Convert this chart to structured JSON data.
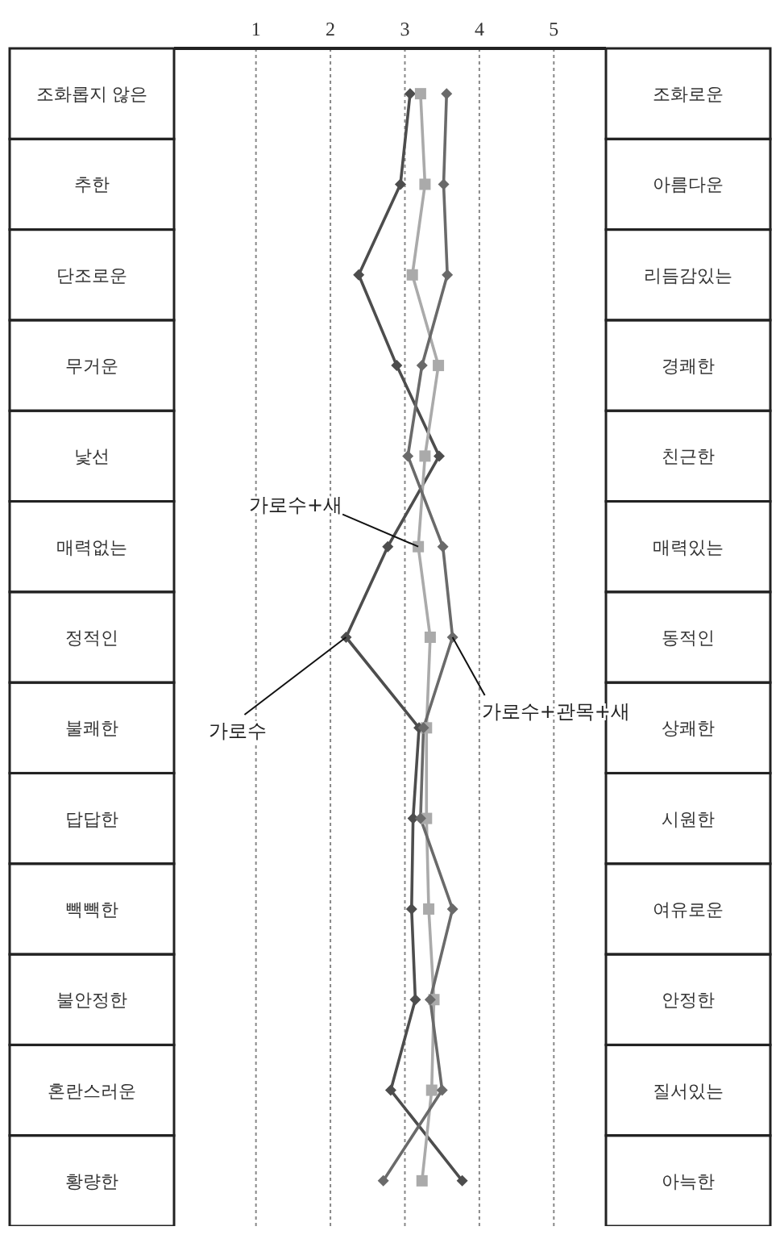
{
  "chart_data": {
    "type": "line",
    "orientation": "horizontal",
    "categories": [
      "조화롭지 않은",
      "추한",
      "단조로운",
      "무거운",
      "낯선",
      "매력없는",
      "정적인",
      "불쾌한",
      "답답한",
      "빽빽한",
      "불안정한",
      "혼란스러운",
      "황량한"
    ],
    "y2_categories": [
      "조화로운",
      "아름다운",
      "리듬감있는",
      "경쾌한",
      "친근한",
      "매력있는",
      "동적인",
      "상쾌한",
      "시원한",
      "여유로운",
      "안정한",
      "질서있는",
      "아늑한"
    ],
    "series": [
      {
        "color": "#4d4d4d",
        "marker": "diamond",
        "values": [
          3.07,
          2.94,
          2.38,
          2.89,
          3.46,
          2.77,
          2.21,
          3.19,
          3.11,
          3.09,
          3.14,
          2.81,
          3.77
        ]
      },
      {
        "color": "#aaaaaa",
        "marker": "square",
        "values": [
          3.21,
          3.27,
          3.1,
          3.45,
          3.27,
          3.18,
          3.34,
          3.29,
          3.29,
          3.32,
          3.39,
          3.36,
          3.23
        ]
      },
      {
        "color": "#6a6a6a",
        "marker": "diamond",
        "values": [
          3.56,
          3.52,
          3.57,
          3.23,
          3.04,
          3.51,
          3.64,
          3.25,
          3.21,
          3.64,
          3.34,
          3.5,
          2.71
        ]
      }
    ],
    "xlim": [
      -0.1,
      5.7
    ],
    "xticks": [
      1,
      2,
      3,
      4,
      5
    ],
    "grid": "x",
    "line_style": "solid",
    "annotations": [
      {
        "text": "가로수+새",
        "x": 3.18,
        "y": "매력없는"
      },
      {
        "text": "가로수",
        "x": 2.21,
        "y": "정적인"
      },
      {
        "text": "가로수+관목+새",
        "x": 3.64,
        "y": "정적인"
      }
    ]
  }
}
